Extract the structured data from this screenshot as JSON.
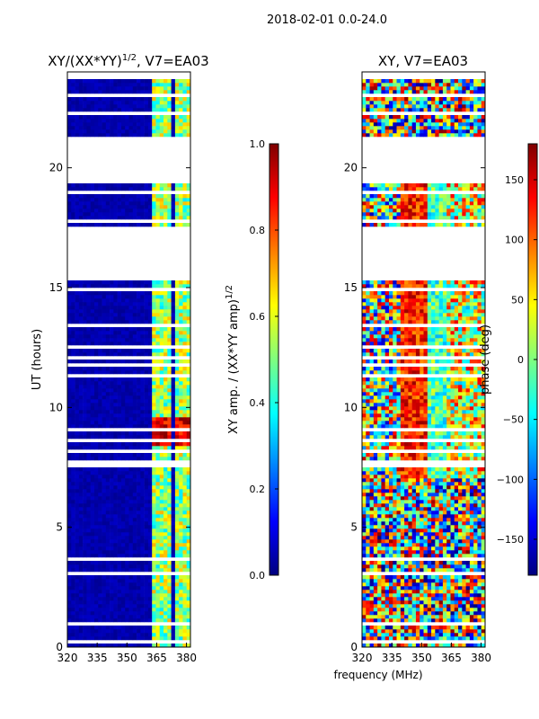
{
  "suptitle": "2018-02-01 0.0-24.0",
  "shared_xlabel": "frequency (MHz)",
  "colors": {
    "white": "#ffffff",
    "black": "#000000",
    "colormap": [
      "#00007f",
      "#0000ff",
      "#007fff",
      "#00ffff",
      "#7fff7f",
      "#ffff00",
      "#ff7f00",
      "#ff0000",
      "#7f0000"
    ]
  },
  "chart_data": [
    {
      "type": "heatmap",
      "title_main": "XY/(XX*YY)",
      "title_sup": "1/2",
      "title_suffix": ", V7=EA03",
      "xlabel": "",
      "ylabel": "UT (hours)",
      "xlim": [
        320,
        382
      ],
      "ylim": [
        0,
        24
      ],
      "xticks": [
        320,
        335,
        350,
        365,
        380
      ],
      "xtick_labels": [
        "320",
        "335",
        "350",
        "365",
        "380"
      ],
      "yticks": [
        0,
        5,
        10,
        15,
        20
      ],
      "ytick_labels": [
        "0",
        "5",
        "10",
        "15",
        "20"
      ],
      "data_gaps_ut": [
        [
          15.4,
          17.5
        ],
        [
          19.5,
          21.3
        ]
      ],
      "bright_channels_mhz": [
        [
          362,
          372
        ],
        [
          374,
          382
        ]
      ],
      "colorbar": {
        "label_main": "XY amp. / (XX*YY amp)",
        "label_sup": "1/2",
        "range": [
          0.0,
          1.0
        ],
        "ticks": [
          0.0,
          0.2,
          0.4,
          0.6,
          0.8,
          1.0
        ],
        "tick_labels": [
          "0.0",
          "0.2",
          "0.4",
          "0.6",
          "0.8",
          "1.0"
        ]
      }
    },
    {
      "type": "heatmap",
      "title_main": "XY, V7=EA03",
      "xlabel": "",
      "ylabel": "",
      "xlim": [
        320,
        382
      ],
      "ylim": [
        0,
        24
      ],
      "xticks": [
        320,
        335,
        350,
        365,
        380
      ],
      "xtick_labels": [
        "320",
        "335",
        "350",
        "365",
        "380"
      ],
      "yticks": [
        0,
        5,
        10,
        15,
        20
      ],
      "ytick_labels": [
        "0",
        "5",
        "10",
        "15",
        "20"
      ],
      "data_gaps_ut": [
        [
          15.4,
          17.5
        ],
        [
          19.5,
          21.3
        ]
      ],
      "colorbar": {
        "label_main": "phase (deg)",
        "range": [
          -180,
          180
        ],
        "ticks": [
          -150,
          -100,
          -50,
          0,
          50,
          100,
          150
        ],
        "tick_labels": [
          "−150",
          "−100",
          "−50",
          "0",
          "50",
          "100",
          "150"
        ]
      }
    }
  ]
}
